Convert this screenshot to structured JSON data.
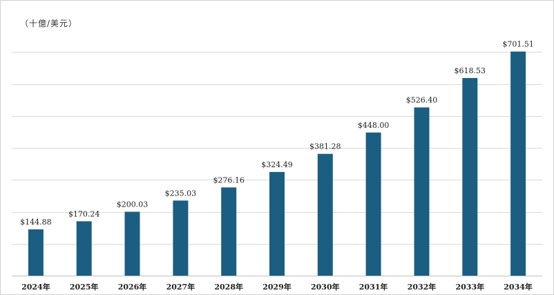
{
  "chart_data": {
    "type": "bar",
    "unit_label": "（十億/美元）",
    "categories": [
      "2024年",
      "2025年",
      "2026年",
      "2027年",
      "2028年",
      "2029年",
      "2030年",
      "2031年",
      "2032年",
      "2033年",
      "2034年"
    ],
    "values": [
      144.88,
      170.24,
      200.03,
      235.03,
      276.16,
      324.49,
      381.28,
      448.0,
      526.4,
      618.53,
      701.51
    ],
    "value_labels": [
      "$144.88",
      "$170.24",
      "$200.03",
      "$235.03",
      "$276.16",
      "$324.49",
      "$381.28",
      "$448.00",
      "$526.40",
      "$618.53",
      "$701.51"
    ],
    "ylim": [
      0,
      800
    ],
    "gridlines": true,
    "bar_color": "#1b5e82",
    "grid_color": "#d9d9d9",
    "axis_color": "#bfbfbf",
    "legend": "none"
  }
}
